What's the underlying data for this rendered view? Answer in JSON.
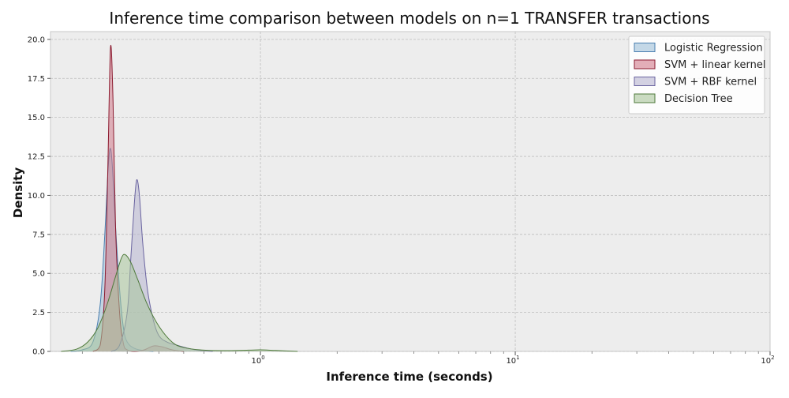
{
  "chart_data": {
    "type": "area",
    "title": "Inference time comparison between models on n=1 TRANSFER transactions",
    "xlabel": "Inference time (seconds)",
    "ylabel": "Density",
    "xscale": "log",
    "xlim": [
      0.15,
      100
    ],
    "ylim": [
      0,
      20.5
    ],
    "x_ticks": [
      {
        "value": 1,
        "base": "10",
        "exp": "0"
      },
      {
        "value": 10,
        "base": "10",
        "exp": "1"
      },
      {
        "value": 100,
        "base": "10",
        "exp": "2"
      }
    ],
    "y_ticks": [
      "0.0",
      "2.5",
      "5.0",
      "7.5",
      "10.0",
      "12.5",
      "15.0",
      "17.5",
      "20.0"
    ],
    "grid": true,
    "legend_position": "top-right",
    "series": [
      {
        "name": "Logistic Regression",
        "color": "#9ebfd9",
        "edge": "#4a7fb0",
        "points": [
          [
            0.18,
            0
          ],
          [
            0.2,
            0.1
          ],
          [
            0.22,
            0.6
          ],
          [
            0.235,
            3.0
          ],
          [
            0.245,
            7.5
          ],
          [
            0.252,
            11.5
          ],
          [
            0.257,
            13.0
          ],
          [
            0.262,
            12.0
          ],
          [
            0.27,
            8.0
          ],
          [
            0.28,
            4.0
          ],
          [
            0.29,
            1.5
          ],
          [
            0.3,
            0.6
          ],
          [
            0.32,
            0.2
          ],
          [
            0.35,
            0.05
          ],
          [
            0.38,
            0
          ]
        ]
      },
      {
        "name": "SVM + linear kernel",
        "color": "#d27a8a",
        "edge": "#8b1a2f",
        "points": [
          [
            0.22,
            0
          ],
          [
            0.235,
            0.4
          ],
          [
            0.245,
            4.0
          ],
          [
            0.252,
            12.0
          ],
          [
            0.258,
            19.5
          ],
          [
            0.264,
            16.0
          ],
          [
            0.27,
            8.0
          ],
          [
            0.28,
            2.5
          ],
          [
            0.29,
            0.5
          ],
          [
            0.3,
            0.1
          ],
          [
            0.32,
            0
          ],
          [
            0.35,
            0.1
          ],
          [
            0.38,
            0.35
          ],
          [
            0.41,
            0.3
          ],
          [
            0.45,
            0.1
          ],
          [
            0.5,
            0
          ]
        ]
      },
      {
        "name": "SVM + RBF kernel",
        "color": "#b7b4d0",
        "edge": "#6a64a0",
        "points": [
          [
            0.26,
            0
          ],
          [
            0.28,
            0.4
          ],
          [
            0.3,
            2.5
          ],
          [
            0.31,
            6.0
          ],
          [
            0.32,
            9.5
          ],
          [
            0.327,
            11.0
          ],
          [
            0.335,
            10.0
          ],
          [
            0.345,
            7.0
          ],
          [
            0.36,
            4.0
          ],
          [
            0.38,
            2.0
          ],
          [
            0.4,
            1.0
          ],
          [
            0.43,
            0.6
          ],
          [
            0.47,
            0.4
          ],
          [
            0.52,
            0.2
          ],
          [
            0.58,
            0.05
          ],
          [
            0.65,
            0
          ]
        ]
      },
      {
        "name": "Decision Tree",
        "color": "#a8c49a",
        "edge": "#4f7a3c",
        "points": [
          [
            0.165,
            0
          ],
          [
            0.19,
            0.15
          ],
          [
            0.21,
            0.6
          ],
          [
            0.23,
            1.5
          ],
          [
            0.25,
            3.0
          ],
          [
            0.27,
            4.8
          ],
          [
            0.285,
            6.0
          ],
          [
            0.295,
            6.2
          ],
          [
            0.31,
            5.7
          ],
          [
            0.33,
            4.6
          ],
          [
            0.36,
            3.0
          ],
          [
            0.4,
            1.6
          ],
          [
            0.45,
            0.6
          ],
          [
            0.5,
            0.25
          ],
          [
            0.6,
            0.08
          ],
          [
            0.75,
            0.05
          ],
          [
            0.9,
            0.08
          ],
          [
            1.0,
            0.1
          ],
          [
            1.15,
            0.06
          ],
          [
            1.4,
            0
          ]
        ]
      }
    ]
  }
}
